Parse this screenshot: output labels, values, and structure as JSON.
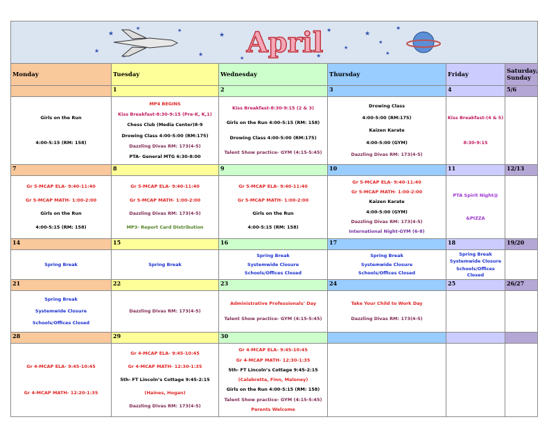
{
  "header": {
    "title": "April"
  },
  "columns": [
    "Monday",
    "Tuesday",
    "Wednesday",
    "Thursday",
    "Friday",
    "Saturday/ Sunday"
  ],
  "weeks": [
    {
      "days": [
        {
          "events": [
            "Girls on the Run",
            "4:00-5:15 (RM: 158)"
          ]
        },
        {
          "date": "1",
          "events": [
            {
              "text": "MP4 BEGINS",
              "color": "#e02424"
            },
            {
              "text": "Kiss Breakfast-8:30-9:15 (Pre-K, K,1)",
              "color": "#c0185a"
            },
            "Chess Club  (Media Center)8-9",
            "Drowing Class 4:00-5:00 (RM:175)",
            {
              "text": "Dazzling Divas RM: 173(4-5)",
              "color": "#7f2a54"
            },
            "PTA- General MTG 6:30-8:00"
          ]
        },
        {
          "date": "2",
          "events": [
            {
              "text": "Kiss Breakfast-8:30-9:15 (2 & 3)",
              "color": "#c0185a"
            },
            "Girls on the Run 4:00-5:15 (RM: 158)",
            "Drowing Class 4:00-5:00  (RM:175)",
            {
              "text": "Talent Show practice- GYM (4:15-5:45)",
              "color": "#7f2a54"
            }
          ]
        },
        {
          "date": "3",
          "events": [
            "Drowing Class",
            "4:00-5:00  (RM:175)",
            "Kaizen Karate",
            "4:00-5:00 (GYM)",
            {
              "text": "Dazzling Divas RM: 173(4-5)",
              "color": "#7f2a54"
            }
          ]
        },
        {
          "date": "4",
          "events": [
            {
              "text": "Kiss Breakfast-(4 & 5)",
              "color": "#c0185a"
            },
            {
              "text": "8:30-9:15",
              "color": "#c0185a"
            }
          ]
        },
        {
          "date": "5/6"
        }
      ]
    },
    {
      "days": [
        {
          "date": "7",
          "events": [
            {
              "text": "Gr 5-MCAP ELA- 9:40-11:40",
              "color": "#e02424"
            },
            {
              "text": "Gr 5-MCAP MATH- 1:00-2:00",
              "color": "#e02424"
            },
            "Girls on the Run",
            "4:00-5:15 (RM: 158)"
          ]
        },
        {
          "date": "8",
          "events": [
            {
              "text": "Gr 5-MCAP ELA- 9:40-11:40",
              "color": "#e02424"
            },
            {
              "text": "Gr 5-MCAP MATH- 1:00-2:00",
              "color": "#e02424"
            },
            {
              "text": "Dazzling Divas RM: 173(4-5)",
              "color": "#7f2a54"
            },
            {
              "text": "MP3- Report Card Distribution",
              "color": "#4f7f1f"
            }
          ]
        },
        {
          "date": "9",
          "events": [
            {
              "text": "Gr 5-MCAP ELA- 9:40-11:40",
              "color": "#e02424"
            },
            {
              "text": "Gr 5-MCAP MATH- 1:00-2:00",
              "color": "#e02424"
            },
            "Girls on the Run",
            "4:00-5:15 (RM: 158)"
          ]
        },
        {
          "date": "10",
          "events": [
            {
              "text": "Gr 5-MCAP ELA- 9:40-11:40",
              "color": "#e02424"
            },
            {
              "text": "Gr 5-MCAP MATH- 1:00-2:00",
              "color": "#e02424"
            },
            "Kaizen Karate",
            "4:00-5:00 (GYM)",
            {
              "text": "Dazzling Divas RM: 173(4-5)",
              "color": "#7f2a54"
            },
            {
              "text": "International Night-GYM (6-8)",
              "color": "#7030a0"
            }
          ]
        },
        {
          "date": "11",
          "events": [
            {
              "text": "PTA Spirit Night@",
              "color": "#9b30d0"
            },
            {
              "text": "&PIZZA",
              "color": "#9b30d0"
            }
          ]
        },
        {
          "date": "12/13"
        }
      ]
    },
    {
      "days": [
        {
          "date": "14",
          "events": [
            {
              "text": "Spring Break",
              "color": "#1a2fd0"
            }
          ]
        },
        {
          "date": "15",
          "events": [
            {
              "text": "Spring Break",
              "color": "#1a2fd0"
            }
          ]
        },
        {
          "date": "16",
          "events": [
            {
              "text": "Spring Break",
              "color": "#1a2fd0"
            },
            {
              "text": "Systemwide Closure",
              "color": "#1a2fd0"
            },
            {
              "text": "Schools/Offices Closed",
              "color": "#1a2fd0"
            }
          ]
        },
        {
          "date": "17",
          "events": [
            {
              "text": "Spring Break",
              "color": "#1a2fd0"
            },
            {
              "text": "Systemwide Closure",
              "color": "#1a2fd0"
            },
            {
              "text": "Schools/Offices Closed",
              "color": "#1a2fd0"
            }
          ]
        },
        {
          "date": "18",
          "events": [
            {
              "text": "Spring Break",
              "color": "#1a2fd0"
            },
            {
              "text": "Systemwide Closure",
              "color": "#1a2fd0"
            },
            {
              "text": "Schools/Offices Closed",
              "color": "#1a2fd0"
            }
          ]
        },
        {
          "date": "19/20"
        }
      ]
    },
    {
      "days": [
        {
          "date": "21",
          "events": [
            {
              "text": "Spring Break",
              "color": "#1a2fd0"
            },
            {
              "text": "Systemwide Closure",
              "color": "#1a2fd0"
            },
            {
              "text": "Schools/Offices Closed",
              "color": "#1a2fd0"
            }
          ]
        },
        {
          "date": "22",
          "events": [
            {
              "text": "Dazzling Divas RM: 173(4-5)",
              "color": "#7f2a54"
            }
          ]
        },
        {
          "date": "23",
          "events": [
            {
              "text": "Administrative Professionals’ Day",
              "color": "#e02424"
            },
            {
              "text": "Talent Show practice- GYM (4:15-5:45)",
              "color": "#7f2a54"
            }
          ]
        },
        {
          "date": "24",
          "events": [
            {
              "text": "Take Your Child to Work Day",
              "color": "#e02424"
            },
            {
              "text": "Dazzling Divas RM: 173(4-5)",
              "color": "#7f2a54"
            }
          ]
        },
        {
          "date": "25"
        },
        {
          "date": "26/27"
        }
      ]
    },
    {
      "days": [
        {
          "date": "28",
          "events": [
            {
              "text": "Gr 4-MCAP ELA- 9:45-10:45",
              "color": "#e02424"
            },
            {
              "text": "Gr 4-MCAP MATH- 12:20-1:35",
              "color": "#e02424"
            }
          ]
        },
        {
          "date": "29",
          "events": [
            {
              "text": "Gr 4-MCAP ELA- 9:45-10:45",
              "color": "#e02424"
            },
            {
              "text": "Gr 4-MCAP MATH- 12:30-1:35",
              "color": "#e02424"
            },
            "5th- FT Lincoln’s Cottage 9:45-2:15",
            {
              "text": "(Haines, Hogan)",
              "color": "#e02424"
            },
            {
              "text": "Dazzling Divas RM: 173(4-5)",
              "color": "#7f2a54"
            }
          ]
        },
        {
          "date": "30",
          "events": [
            {
              "text": "Gr 4-MCAP ELA- 9:45-10:45",
              "color": "#e02424"
            },
            {
              "text": "Gr 4-MCAP MATH- 12:30-1:35",
              "color": "#e02424"
            },
            "5th- FT Lincoln’s Cottage 9:45-2:15",
            {
              "text": "(Calabretta, Finn, Maloney)",
              "color": "#e02424"
            },
            "Girls on the Run 4:00-5:15 (RM: 158)",
            {
              "text": "Talent Show practice- GYM (4:15-5:45)",
              "color": "#7f2a54"
            },
            {
              "text": "Parents Welcome",
              "color": "#e02424"
            }
          ]
        },
        {},
        {},
        {}
      ]
    }
  ]
}
